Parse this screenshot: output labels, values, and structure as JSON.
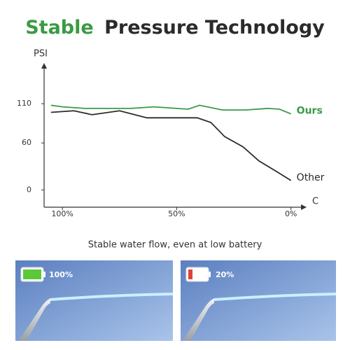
{
  "chart_data": {
    "type": "line",
    "title": [
      "Stable",
      "Pressure Technology"
    ],
    "y_label": "PSI",
    "x_label": "C",
    "xlim": [
      108,
      -5
    ],
    "xticks": [
      {
        "value": 100,
        "label": "100%"
      },
      {
        "value": 50,
        "label": "50%"
      },
      {
        "value": 0,
        "label": "0%"
      }
    ],
    "ylim": [
      -22,
      153
    ],
    "yticks": [
      0,
      60,
      110
    ],
    "series": [
      {
        "name": "Ours",
        "color": "#3a9a45",
        "x": [
          105,
          100,
          90,
          80,
          70,
          60,
          50,
          45,
          40,
          30,
          20,
          10,
          5,
          0
        ],
        "values": [
          108,
          106,
          104,
          104,
          104,
          106,
          104,
          103,
          108,
          102,
          102,
          104,
          103,
          97
        ]
      },
      {
        "name": "Other",
        "color": "#2b2b2b",
        "x": [
          105,
          95,
          87,
          75,
          63,
          41,
          35,
          29,
          21,
          14,
          6,
          0
        ],
        "values": [
          99,
          101,
          96,
          101,
          92,
          92,
          86,
          68,
          55,
          37,
          23,
          12
        ]
      }
    ],
    "caption": "Stable water flow, even at low battery",
    "panels": [
      {
        "battery": "100%"
      },
      {
        "battery": "20%"
      }
    ]
  }
}
